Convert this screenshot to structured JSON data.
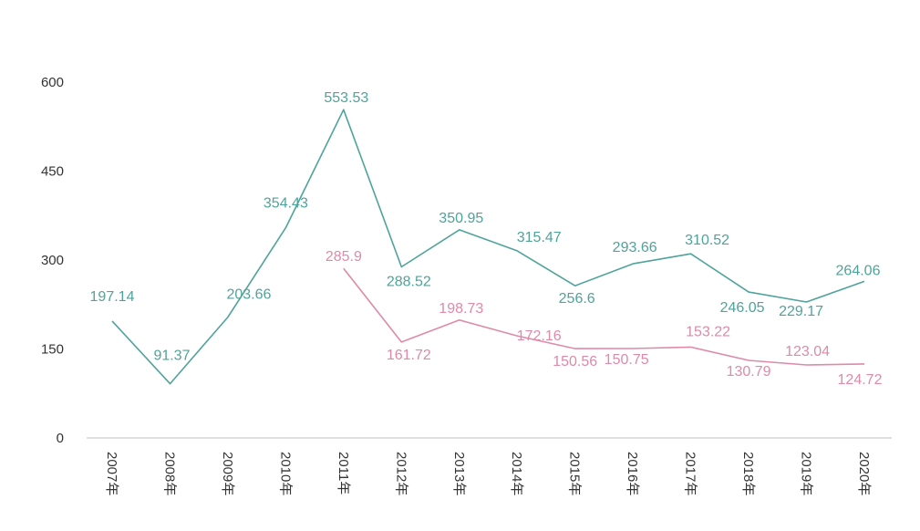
{
  "chart_data": {
    "type": "line",
    "categories": [
      "2007年",
      "2008年",
      "2009年",
      "2010年",
      "2011年",
      "2012年",
      "2013年",
      "2014年",
      "2015年",
      "2016年",
      "2017年",
      "2018年",
      "2019年",
      "2020年"
    ],
    "y_ticks": [
      "0",
      "150",
      "300",
      "450",
      "600"
    ],
    "ylim": [
      0,
      600
    ],
    "grid": false,
    "legend": "none",
    "series": [
      {
        "color": "#4fa39b",
        "values": [
          197.14,
          91.37,
          203.66,
          354.43,
          553.53,
          288.52,
          350.95,
          315.47,
          256.6,
          293.66,
          310.52,
          246.05,
          229.17,
          264.06
        ],
        "labels": [
          "197.14",
          "91.37",
          "203.66",
          "354.43",
          "553.53",
          "288.52",
          "350.95",
          "315.47",
          "256.6",
          "293.66",
          "310.52",
          "246.05",
          "229.17",
          "264.06"
        ]
      },
      {
        "color": "#de8aa8",
        "values": [
          null,
          null,
          null,
          null,
          285.9,
          161.72,
          198.73,
          172.16,
          150.56,
          150.75,
          153.22,
          130.79,
          123.04,
          124.72
        ],
        "labels": [
          null,
          null,
          null,
          null,
          "285.9",
          "161.72",
          "198.73",
          "172.16",
          "150.56",
          "150.75",
          "153.22",
          "130.79",
          "123.04",
          "124.72"
        ]
      }
    ]
  }
}
